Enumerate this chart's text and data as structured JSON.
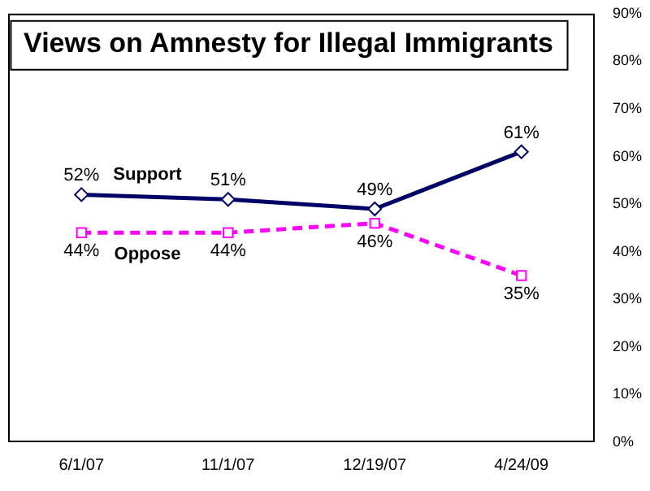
{
  "chart_data": {
    "type": "line",
    "title": "Views on Amnesty for Illegal Immigrants",
    "categories": [
      "6/1/07",
      "11/1/07",
      "12/19/07",
      "4/24/09"
    ],
    "series": [
      {
        "name": "Support",
        "color": "#000066",
        "values": [
          52,
          51,
          49,
          61
        ],
        "marker": "diamond",
        "line_style": "solid",
        "value_labels": [
          "52%",
          "51%",
          "49%",
          "61%"
        ]
      },
      {
        "name": "Oppose",
        "color": "#ff00ff",
        "values": [
          44,
          44,
          46,
          35
        ],
        "marker": "square",
        "line_style": "dashed",
        "value_labels": [
          "44%",
          "44%",
          "46%",
          "35%"
        ]
      }
    ],
    "ylim": [
      0,
      90
    ],
    "yticks": [
      {
        "value": 0,
        "label": "0%"
      },
      {
        "value": 10,
        "label": "10%"
      },
      {
        "value": 20,
        "label": "20%"
      },
      {
        "value": 30,
        "label": "30%"
      },
      {
        "value": 40,
        "label": "40%"
      },
      {
        "value": 50,
        "label": "50%"
      },
      {
        "value": 60,
        "label": "60%"
      },
      {
        "value": 70,
        "label": "70%"
      },
      {
        "value": 80,
        "label": "80%"
      },
      {
        "value": 90,
        "label": "90%"
      }
    ],
    "grid": false,
    "legend": false
  }
}
